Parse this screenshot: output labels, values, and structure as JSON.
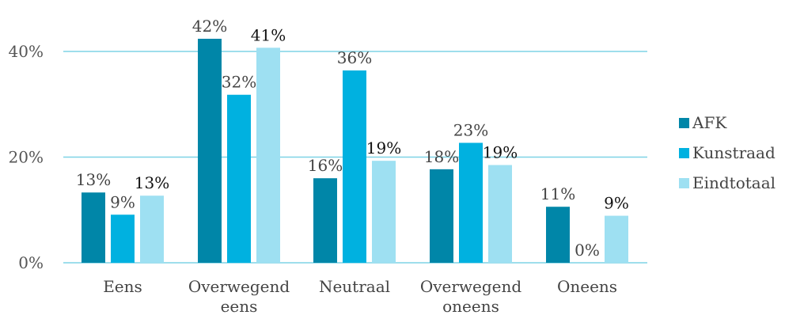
{
  "chart_data": {
    "type": "bar",
    "categories": [
      [
        "Eens"
      ],
      [
        "Overwegend",
        "eens"
      ],
      [
        "Neutraal"
      ],
      [
        "Overwegend",
        "oneens"
      ],
      [
        "Oneens"
      ]
    ],
    "series": [
      {
        "name": "AFK",
        "color": "#0086A8",
        "values": [
          13,
          42,
          16,
          18,
          11
        ]
      },
      {
        "name": "Kunstraad",
        "color": "#00B1E0",
        "values": [
          9,
          32,
          36,
          23,
          0
        ]
      },
      {
        "name": "Eindtotaal",
        "color": "#9EE0F2",
        "values": [
          13,
          41,
          19,
          19,
          9
        ]
      }
    ],
    "data_labels": [
      [
        "13%",
        "42%",
        "16%",
        "18%",
        "11%"
      ],
      [
        "9%",
        "32%",
        "36%",
        "23%",
        "0%"
      ],
      [
        "13%",
        "41%",
        "19%",
        "19%",
        "9%"
      ]
    ],
    "series_values_exact": [
      [
        13.3,
        42.4,
        16.0,
        17.7,
        10.6
      ],
      [
        9.1,
        31.8,
        36.4,
        22.7,
        0
      ],
      [
        12.7,
        40.7,
        19.3,
        18.5,
        8.9
      ]
    ],
    "y_ticks": [
      "0%",
      "20%",
      "40%"
    ],
    "ylim": [
      0,
      45
    ],
    "grid": true,
    "legend_position": "right",
    "title": "",
    "xlabel": "",
    "ylabel": ""
  }
}
